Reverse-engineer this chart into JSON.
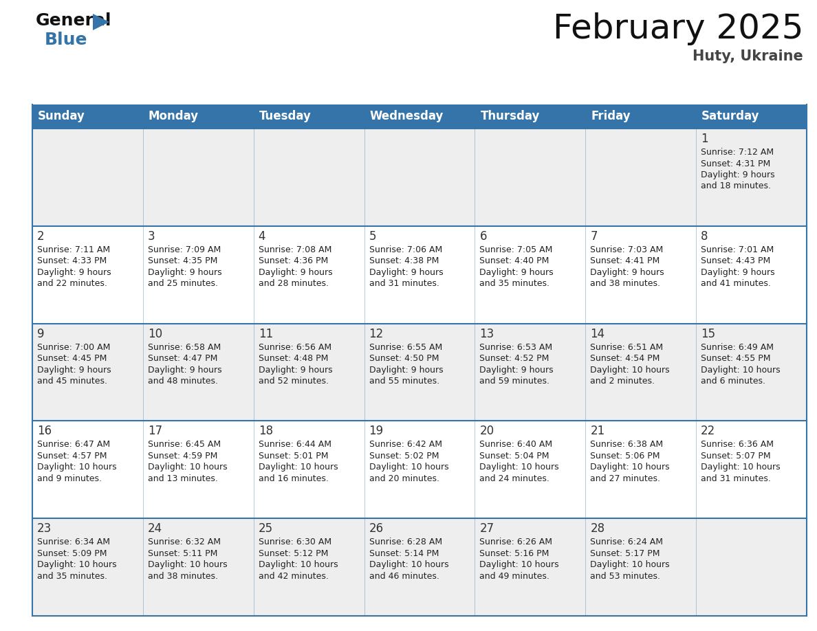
{
  "title": "February 2025",
  "subtitle": "Huty, Ukraine",
  "days_of_week": [
    "Sunday",
    "Monday",
    "Tuesday",
    "Wednesday",
    "Thursday",
    "Friday",
    "Saturday"
  ],
  "header_bg": "#3574a8",
  "header_text": "#ffffff",
  "bg_color": "#ffffff",
  "row_odd_bg": "#eeeeee",
  "row_even_bg": "#ffffff",
  "grid_line_color": "#3574a8",
  "text_color": "#333333",
  "info_color": "#222222",
  "calendar_data": [
    [
      {
        "day": "",
        "lines": []
      },
      {
        "day": "",
        "lines": []
      },
      {
        "day": "",
        "lines": []
      },
      {
        "day": "",
        "lines": []
      },
      {
        "day": "",
        "lines": []
      },
      {
        "day": "",
        "lines": []
      },
      {
        "day": "1",
        "lines": [
          "Sunrise: 7:12 AM",
          "Sunset: 4:31 PM",
          "Daylight: 9 hours",
          "and 18 minutes."
        ]
      }
    ],
    [
      {
        "day": "2",
        "lines": [
          "Sunrise: 7:11 AM",
          "Sunset: 4:33 PM",
          "Daylight: 9 hours",
          "and 22 minutes."
        ]
      },
      {
        "day": "3",
        "lines": [
          "Sunrise: 7:09 AM",
          "Sunset: 4:35 PM",
          "Daylight: 9 hours",
          "and 25 minutes."
        ]
      },
      {
        "day": "4",
        "lines": [
          "Sunrise: 7:08 AM",
          "Sunset: 4:36 PM",
          "Daylight: 9 hours",
          "and 28 minutes."
        ]
      },
      {
        "day": "5",
        "lines": [
          "Sunrise: 7:06 AM",
          "Sunset: 4:38 PM",
          "Daylight: 9 hours",
          "and 31 minutes."
        ]
      },
      {
        "day": "6",
        "lines": [
          "Sunrise: 7:05 AM",
          "Sunset: 4:40 PM",
          "Daylight: 9 hours",
          "and 35 minutes."
        ]
      },
      {
        "day": "7",
        "lines": [
          "Sunrise: 7:03 AM",
          "Sunset: 4:41 PM",
          "Daylight: 9 hours",
          "and 38 minutes."
        ]
      },
      {
        "day": "8",
        "lines": [
          "Sunrise: 7:01 AM",
          "Sunset: 4:43 PM",
          "Daylight: 9 hours",
          "and 41 minutes."
        ]
      }
    ],
    [
      {
        "day": "9",
        "lines": [
          "Sunrise: 7:00 AM",
          "Sunset: 4:45 PM",
          "Daylight: 9 hours",
          "and 45 minutes."
        ]
      },
      {
        "day": "10",
        "lines": [
          "Sunrise: 6:58 AM",
          "Sunset: 4:47 PM",
          "Daylight: 9 hours",
          "and 48 minutes."
        ]
      },
      {
        "day": "11",
        "lines": [
          "Sunrise: 6:56 AM",
          "Sunset: 4:48 PM",
          "Daylight: 9 hours",
          "and 52 minutes."
        ]
      },
      {
        "day": "12",
        "lines": [
          "Sunrise: 6:55 AM",
          "Sunset: 4:50 PM",
          "Daylight: 9 hours",
          "and 55 minutes."
        ]
      },
      {
        "day": "13",
        "lines": [
          "Sunrise: 6:53 AM",
          "Sunset: 4:52 PM",
          "Daylight: 9 hours",
          "and 59 minutes."
        ]
      },
      {
        "day": "14",
        "lines": [
          "Sunrise: 6:51 AM",
          "Sunset: 4:54 PM",
          "Daylight: 10 hours",
          "and 2 minutes."
        ]
      },
      {
        "day": "15",
        "lines": [
          "Sunrise: 6:49 AM",
          "Sunset: 4:55 PM",
          "Daylight: 10 hours",
          "and 6 minutes."
        ]
      }
    ],
    [
      {
        "day": "16",
        "lines": [
          "Sunrise: 6:47 AM",
          "Sunset: 4:57 PM",
          "Daylight: 10 hours",
          "and 9 minutes."
        ]
      },
      {
        "day": "17",
        "lines": [
          "Sunrise: 6:45 AM",
          "Sunset: 4:59 PM",
          "Daylight: 10 hours",
          "and 13 minutes."
        ]
      },
      {
        "day": "18",
        "lines": [
          "Sunrise: 6:44 AM",
          "Sunset: 5:01 PM",
          "Daylight: 10 hours",
          "and 16 minutes."
        ]
      },
      {
        "day": "19",
        "lines": [
          "Sunrise: 6:42 AM",
          "Sunset: 5:02 PM",
          "Daylight: 10 hours",
          "and 20 minutes."
        ]
      },
      {
        "day": "20",
        "lines": [
          "Sunrise: 6:40 AM",
          "Sunset: 5:04 PM",
          "Daylight: 10 hours",
          "and 24 minutes."
        ]
      },
      {
        "day": "21",
        "lines": [
          "Sunrise: 6:38 AM",
          "Sunset: 5:06 PM",
          "Daylight: 10 hours",
          "and 27 minutes."
        ]
      },
      {
        "day": "22",
        "lines": [
          "Sunrise: 6:36 AM",
          "Sunset: 5:07 PM",
          "Daylight: 10 hours",
          "and 31 minutes."
        ]
      }
    ],
    [
      {
        "day": "23",
        "lines": [
          "Sunrise: 6:34 AM",
          "Sunset: 5:09 PM",
          "Daylight: 10 hours",
          "and 35 minutes."
        ]
      },
      {
        "day": "24",
        "lines": [
          "Sunrise: 6:32 AM",
          "Sunset: 5:11 PM",
          "Daylight: 10 hours",
          "and 38 minutes."
        ]
      },
      {
        "day": "25",
        "lines": [
          "Sunrise: 6:30 AM",
          "Sunset: 5:12 PM",
          "Daylight: 10 hours",
          "and 42 minutes."
        ]
      },
      {
        "day": "26",
        "lines": [
          "Sunrise: 6:28 AM",
          "Sunset: 5:14 PM",
          "Daylight: 10 hours",
          "and 46 minutes."
        ]
      },
      {
        "day": "27",
        "lines": [
          "Sunrise: 6:26 AM",
          "Sunset: 5:16 PM",
          "Daylight: 10 hours",
          "and 49 minutes."
        ]
      },
      {
        "day": "28",
        "lines": [
          "Sunrise: 6:24 AM",
          "Sunset: 5:17 PM",
          "Daylight: 10 hours",
          "and 53 minutes."
        ]
      },
      {
        "day": "",
        "lines": []
      }
    ]
  ]
}
